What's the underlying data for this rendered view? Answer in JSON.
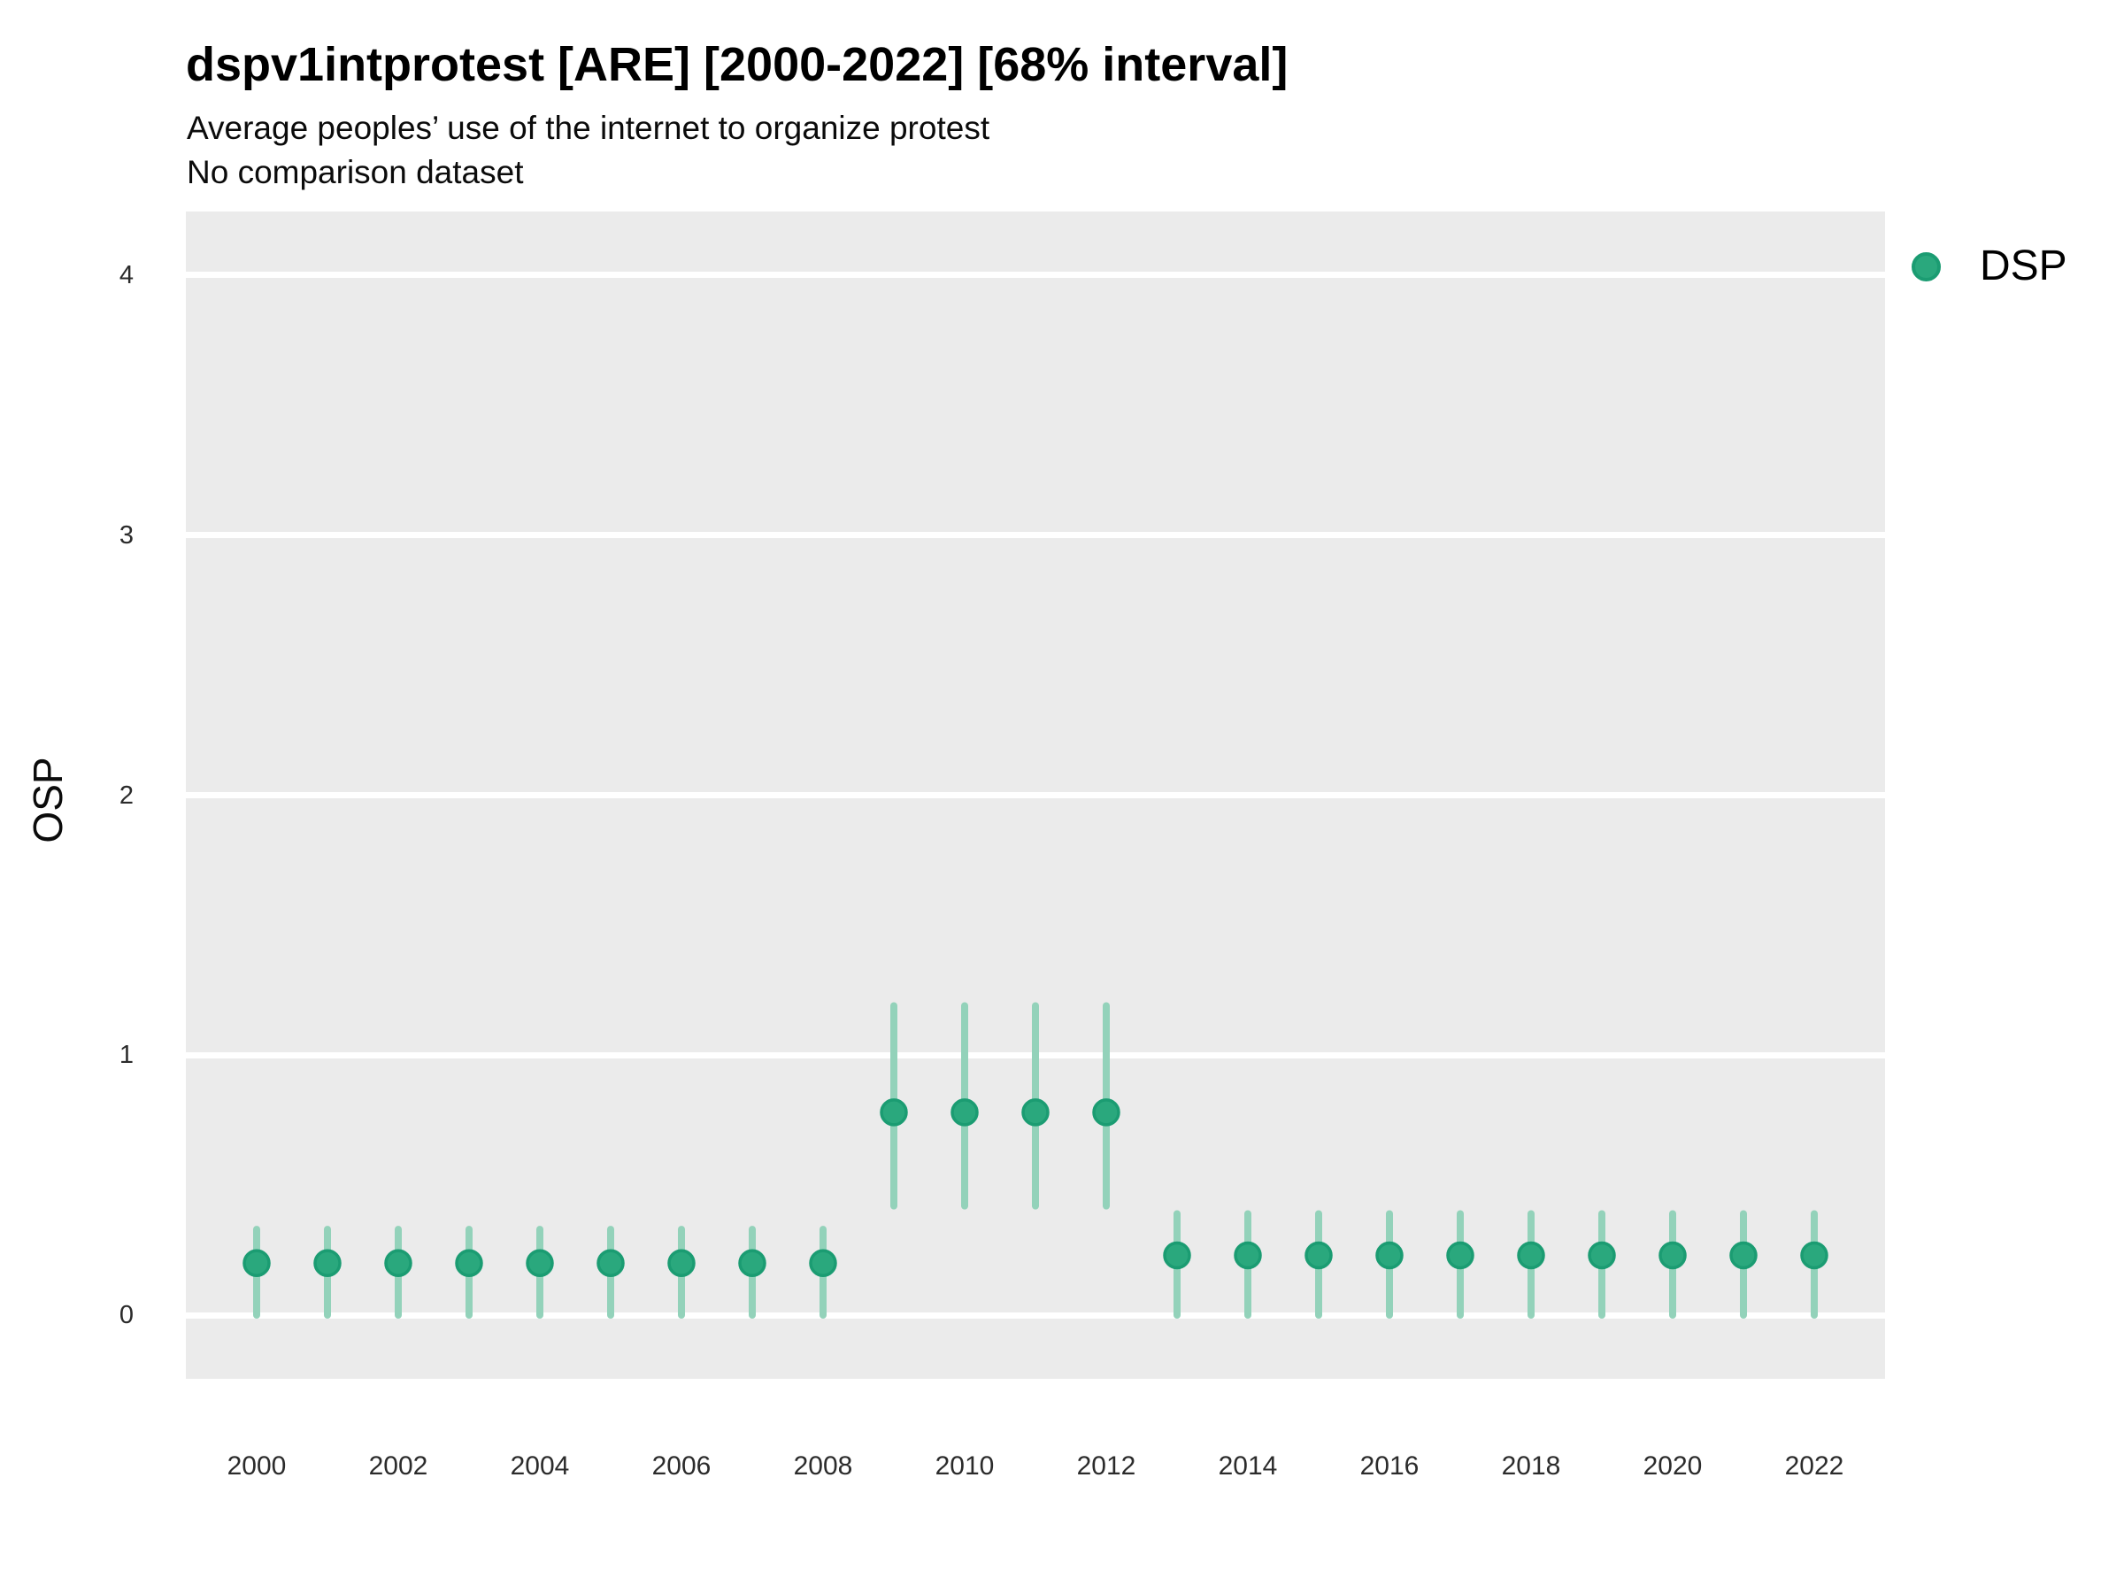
{
  "header": {
    "title": "dspv1intprotest [ARE] [2000-2022] [68% interval]",
    "subtitle": "Average peoples’ use of the internet to organize protest",
    "note": "No comparison dataset"
  },
  "y_axis": {
    "label": "OSP",
    "ticks": [
      0,
      1,
      2,
      3,
      4
    ]
  },
  "x_axis": {
    "ticks": [
      2000,
      2002,
      2004,
      2006,
      2008,
      2010,
      2012,
      2014,
      2016,
      2018,
      2020,
      2022
    ]
  },
  "legend": {
    "label": "DSP",
    "position": "right-top"
  },
  "colors": {
    "panel_background": "#ebebeb",
    "gridline": "#ffffff",
    "point_fill": "#2aa87d",
    "point_stroke": "#1b9c72",
    "interval_bar": "#93d2ba",
    "title_text": "#000000",
    "tick_text": "#2b2b2b"
  },
  "chart_data": {
    "type": "scatter",
    "title": "dspv1intprotest [ARE] [2000-2022] [68% interval]",
    "subtitle": "Average peoples’ use of the internet to organize protest",
    "note": "No comparison dataset",
    "xlabel": "",
    "ylabel": "OSP",
    "interval_level": "68%",
    "legend_position": "right",
    "grid": "horizontal-only",
    "x_domain": [
      1999,
      2023
    ],
    "y_domain": [
      -0.245,
      4.245
    ],
    "x_ticks": [
      2000,
      2002,
      2004,
      2006,
      2008,
      2010,
      2012,
      2014,
      2016,
      2018,
      2020,
      2022
    ],
    "y_ticks": [
      0,
      1,
      2,
      3,
      4
    ],
    "series": [
      {
        "name": "DSP",
        "points": [
          {
            "year": 2000,
            "est": 0.2,
            "lo": 0.0,
            "hi": 0.33
          },
          {
            "year": 2001,
            "est": 0.2,
            "lo": 0.0,
            "hi": 0.33
          },
          {
            "year": 2002,
            "est": 0.2,
            "lo": 0.0,
            "hi": 0.33
          },
          {
            "year": 2003,
            "est": 0.2,
            "lo": 0.0,
            "hi": 0.33
          },
          {
            "year": 2004,
            "est": 0.2,
            "lo": 0.0,
            "hi": 0.33
          },
          {
            "year": 2005,
            "est": 0.2,
            "lo": 0.0,
            "hi": 0.33
          },
          {
            "year": 2006,
            "est": 0.2,
            "lo": 0.0,
            "hi": 0.33
          },
          {
            "year": 2007,
            "est": 0.2,
            "lo": 0.0,
            "hi": 0.33
          },
          {
            "year": 2008,
            "est": 0.2,
            "lo": 0.0,
            "hi": 0.33
          },
          {
            "year": 2009,
            "est": 0.78,
            "lo": 0.42,
            "hi": 1.19
          },
          {
            "year": 2010,
            "est": 0.78,
            "lo": 0.42,
            "hi": 1.19
          },
          {
            "year": 2011,
            "est": 0.78,
            "lo": 0.42,
            "hi": 1.19
          },
          {
            "year": 2012,
            "est": 0.78,
            "lo": 0.42,
            "hi": 1.19
          },
          {
            "year": 2013,
            "est": 0.23,
            "lo": 0.0,
            "hi": 0.39
          },
          {
            "year": 2014,
            "est": 0.23,
            "lo": 0.0,
            "hi": 0.39
          },
          {
            "year": 2015,
            "est": 0.23,
            "lo": 0.0,
            "hi": 0.39
          },
          {
            "year": 2016,
            "est": 0.23,
            "lo": 0.0,
            "hi": 0.39
          },
          {
            "year": 2017,
            "est": 0.23,
            "lo": 0.0,
            "hi": 0.39
          },
          {
            "year": 2018,
            "est": 0.23,
            "lo": 0.0,
            "hi": 0.39
          },
          {
            "year": 2019,
            "est": 0.23,
            "lo": 0.0,
            "hi": 0.39
          },
          {
            "year": 2020,
            "est": 0.23,
            "lo": 0.0,
            "hi": 0.39
          },
          {
            "year": 2021,
            "est": 0.23,
            "lo": 0.0,
            "hi": 0.39
          },
          {
            "year": 2022,
            "est": 0.23,
            "lo": 0.0,
            "hi": 0.39
          }
        ]
      }
    ]
  }
}
